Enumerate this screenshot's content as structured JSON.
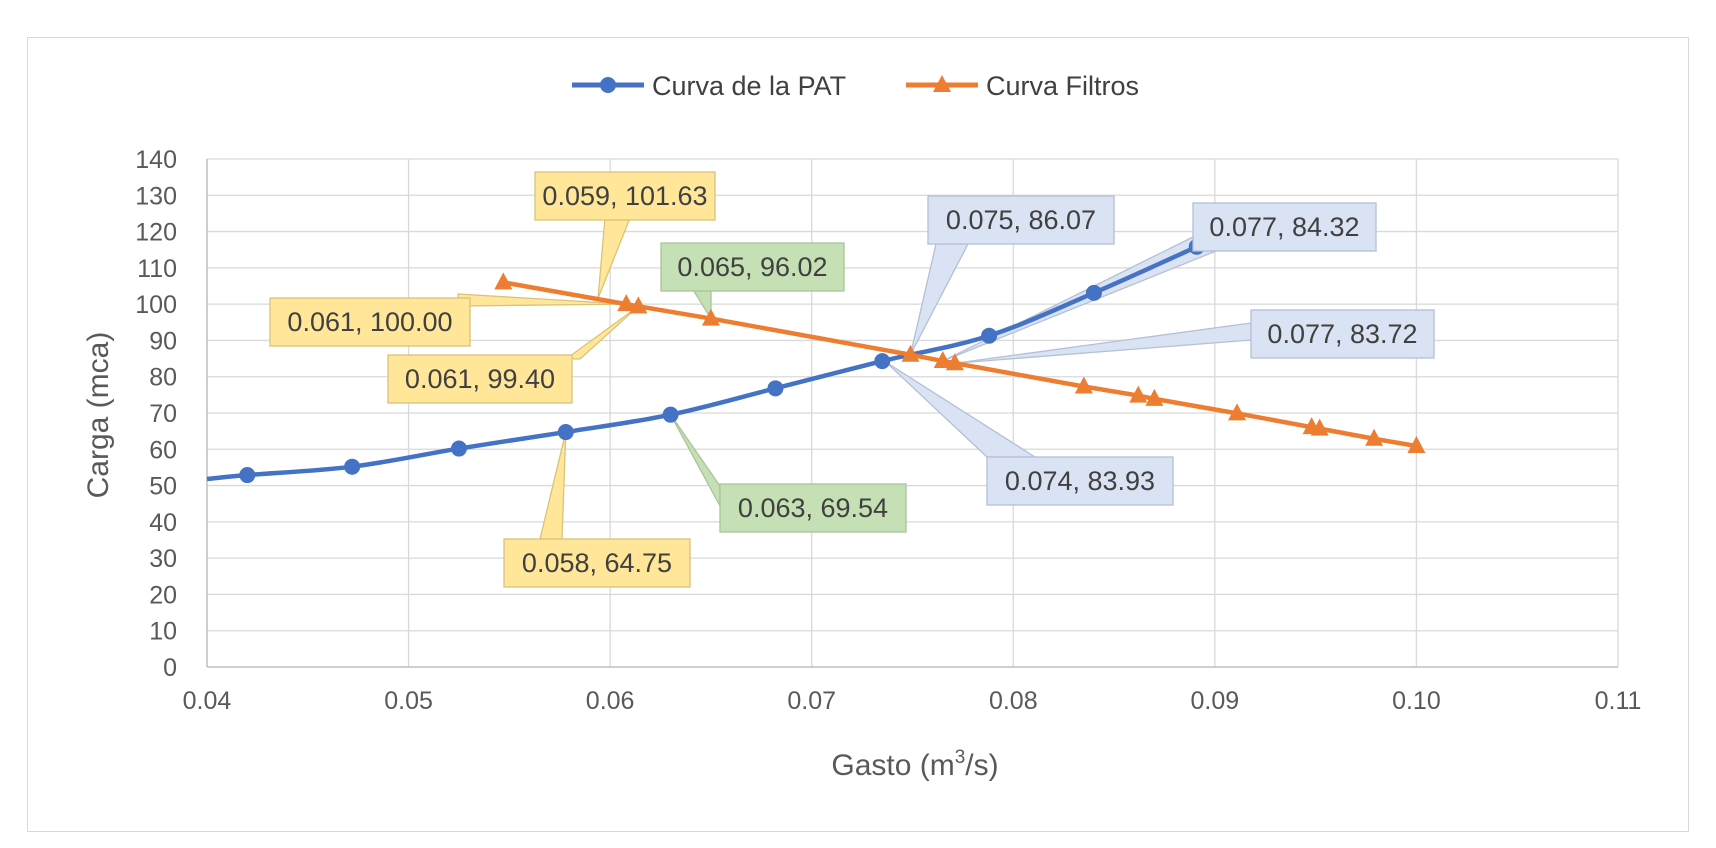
{
  "chart_data": {
    "type": "line",
    "title": "",
    "xlabel": "Gasto (m³/s)",
    "xlabel_parts": {
      "pre": "Gasto (m",
      "sup": "3",
      "post": "/s)"
    },
    "ylabel": "Carga (mca)",
    "xlim": [
      0.04,
      0.11
    ],
    "ylim": [
      0,
      140
    ],
    "x_ticks": [
      "0.04",
      "0.05",
      "0.06",
      "0.07",
      "0.08",
      "0.09",
      "0.10",
      "0.11"
    ],
    "y_ticks": [
      "0",
      "10",
      "20",
      "30",
      "40",
      "50",
      "60",
      "70",
      "80",
      "90",
      "100",
      "110",
      "120",
      "130",
      "140"
    ],
    "grid": true,
    "legend_position": "top-center",
    "series": [
      {
        "name": "Curva de la PAT",
        "color": "#4472C4",
        "marker": "circle",
        "x": [
          0.042,
          0.0472,
          0.0525,
          0.0578,
          0.063,
          0.0682,
          0.0735,
          0.0788,
          0.084,
          0.0891
        ],
        "y": [
          52.9,
          55.2,
          60.2,
          64.75,
          69.54,
          76.8,
          84.3,
          91.3,
          103.1,
          115.8
        ]
      },
      {
        "name": "Curva Filtros",
        "color": "#ED7D31",
        "marker": "triangle",
        "x": [
          0.0547,
          0.0608,
          0.0614,
          0.065,
          0.0749,
          0.0765,
          0.0771,
          0.0835,
          0.0862,
          0.087,
          0.0911,
          0.0948,
          0.0952,
          0.0979,
          0.1
        ],
        "y": [
          106.0,
          100.0,
          99.4,
          96.02,
          86.07,
          84.32,
          83.72,
          77.3,
          74.8,
          73.9,
          69.9,
          66.1,
          65.7,
          62.9,
          60.9
        ]
      }
    ],
    "annotations": [
      {
        "text": "0.059, 101.63",
        "style": "yellow",
        "x": 0.0594,
        "y": 101.63
      },
      {
        "text": "0.061, 100.00",
        "style": "yellow",
        "x": 0.0608,
        "y": 100.0
      },
      {
        "text": "0.061, 99.40",
        "style": "yellow",
        "x": 0.0614,
        "y": 99.4
      },
      {
        "text": "0.065, 96.02",
        "style": "green",
        "x": 0.065,
        "y": 96.02
      },
      {
        "text": "0.058, 64.75",
        "style": "yellow",
        "x": 0.0578,
        "y": 64.75
      },
      {
        "text": "0.063, 69.54",
        "style": "green",
        "x": 0.063,
        "y": 69.54
      },
      {
        "text": "0.075, 86.07",
        "style": "blue",
        "x": 0.0749,
        "y": 86.07
      },
      {
        "text": "0.077, 84.32",
        "style": "blue",
        "x": 0.0765,
        "y": 84.32
      },
      {
        "text": "0.077, 83.72",
        "style": "blue",
        "x": 0.0771,
        "y": 83.72
      },
      {
        "text": "0.074, 83.93",
        "style": "blue",
        "x": 0.0737,
        "y": 83.93
      }
    ],
    "callout_styles": {
      "yellow": {
        "fill": "#FFE699",
        "stroke": "#D9C37A"
      },
      "green": {
        "fill": "#C5E0B4",
        "stroke": "#A9C49A"
      },
      "blue": {
        "fill": "#DAE3F3",
        "stroke": "#B4C0D6"
      }
    }
  }
}
